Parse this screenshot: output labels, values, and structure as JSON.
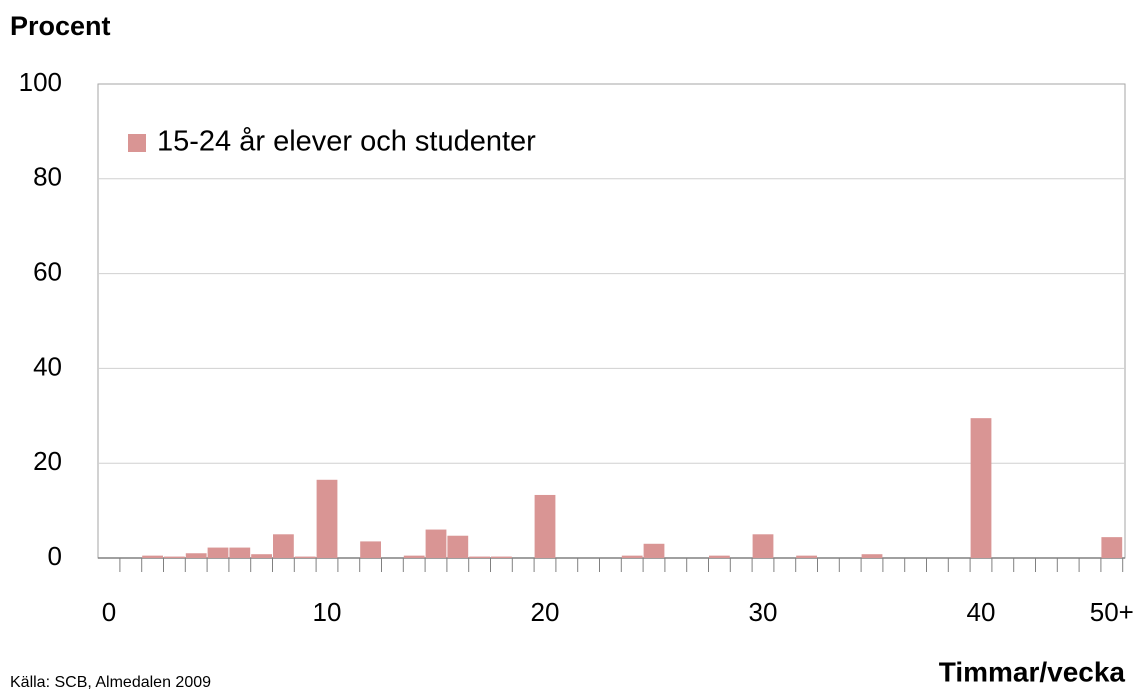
{
  "chart_data": {
    "type": "bar",
    "title": "Procent",
    "x_label": "Timmar/vecka",
    "source": "Källa: SCB, Almedalen 2009",
    "categories": [
      "0",
      null,
      null,
      null,
      null,
      null,
      null,
      null,
      null,
      null,
      "10",
      null,
      null,
      null,
      null,
      null,
      null,
      null,
      null,
      null,
      "20",
      null,
      null,
      null,
      null,
      null,
      null,
      null,
      null,
      null,
      "30",
      null,
      null,
      null,
      null,
      null,
      null,
      null,
      null,
      null,
      "40",
      null,
      null,
      null,
      null,
      null,
      "50+"
    ],
    "series": [
      {
        "name": "15-24 år elever och studenter",
        "color": "#d99594",
        "values": [
          0,
          0,
          0.5,
          0.3,
          1.0,
          2.2,
          2.2,
          0.8,
          5,
          0.3,
          16.5,
          0,
          3.5,
          0,
          0.5,
          6,
          4.7,
          0.3,
          0.3,
          0,
          13.3,
          0,
          0,
          0,
          0.5,
          3,
          0,
          0,
          0.5,
          0,
          5,
          0,
          0.5,
          0,
          0,
          0.8,
          0,
          0,
          0,
          0,
          29.5,
          0,
          0,
          0,
          0,
          0,
          4.4
        ]
      }
    ],
    "ylim": [
      0,
      100
    ],
    "yticks": [
      0,
      20,
      40,
      60,
      80,
      100
    ],
    "grid": true,
    "legend": "top-left"
  }
}
